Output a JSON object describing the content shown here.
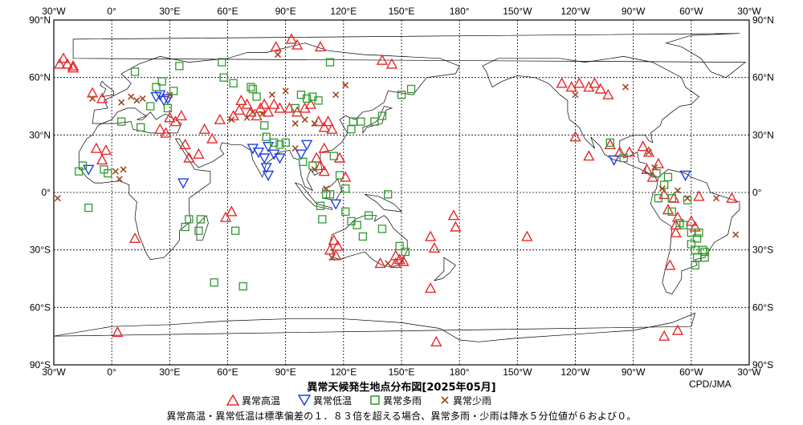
{
  "title": "異常天候発生地点分布図[2025年05月]",
  "credit": "CPD/JMA",
  "legend": {
    "hot": "異常高温",
    "cold": "異常低温",
    "wet": "異常多雨",
    "dry": "異常少雨"
  },
  "note": "異常高温・異常低温は標準偏差の１．８３倍を超える場合、異常多雨・少雨は降水５分位値が６および０。",
  "colors": {
    "hot": "#e8282c",
    "cold": "#1e3ee6",
    "wet": "#2f9a2f",
    "dry": "#a04a20"
  },
  "axes": {
    "lon_labels": [
      "30°W",
      "0°",
      "30°E",
      "60°E",
      "90°E",
      "120°E",
      "150°E",
      "180°",
      "150°W",
      "120°W",
      "90°W",
      "60°W",
      "30°W"
    ],
    "lat_labels": [
      "90°N",
      "60°N",
      "30°N",
      "0°",
      "30°S",
      "60°S",
      "90°S"
    ]
  },
  "chart_data": {
    "type": "scatter",
    "title": "異常天候発生地点分布図[2025年05月]",
    "x_axis": "longitude (east positive, 330°W..30°W centered on 150°E)",
    "y_axis": "latitude",
    "ylim": [
      -90,
      90
    ],
    "series": [
      {
        "name": "異常高温",
        "marker": "triangle-up",
        "points": [
          [
            -23,
            67
          ],
          [
            -25,
            70
          ],
          [
            -20,
            66
          ],
          [
            -10,
            52
          ],
          [
            -5,
            49
          ],
          [
            -8,
            23
          ],
          [
            -3,
            22
          ],
          [
            -5,
            17
          ],
          [
            3,
            -73
          ],
          [
            12,
            -24
          ],
          [
            25,
            33
          ],
          [
            30,
            39
          ],
          [
            33,
            37
          ],
          [
            36,
            40
          ],
          [
            28,
            31
          ],
          [
            38,
            25
          ],
          [
            45,
            20
          ],
          [
            40,
            18
          ],
          [
            48,
            33
          ],
          [
            52,
            28
          ],
          [
            56,
            38
          ],
          [
            62,
            -10
          ],
          [
            59,
            -13
          ],
          [
            63,
            40
          ],
          [
            66,
            43
          ],
          [
            67,
            48
          ],
          [
            70,
            46
          ],
          [
            72,
            42
          ],
          [
            75,
            40
          ],
          [
            77,
            44
          ],
          [
            79,
            46
          ],
          [
            81,
            42
          ],
          [
            84,
            46
          ],
          [
            87,
            44
          ],
          [
            92,
            44
          ],
          [
            96,
            42
          ],
          [
            100,
            44
          ],
          [
            103,
            46
          ],
          [
            107,
            37
          ],
          [
            110,
            34
          ],
          [
            112,
            37
          ],
          [
            114,
            33
          ],
          [
            110,
            23
          ],
          [
            106,
            18
          ],
          [
            108,
            14
          ],
          [
            110,
            11
          ],
          [
            118,
            18
          ],
          [
            121,
            8
          ],
          [
            115,
            -25
          ],
          [
            117,
            -28
          ],
          [
            113,
            -30
          ],
          [
            116,
            -33
          ],
          [
            147,
            -33
          ],
          [
            149,
            -35
          ],
          [
            151,
            -36
          ],
          [
            139,
            -37
          ],
          [
            147,
            -37
          ],
          [
            165,
            -23
          ],
          [
            167,
            -29
          ],
          [
            165,
            -50
          ],
          [
            177,
            -12
          ],
          [
            178,
            -18
          ],
          [
            168,
            -78
          ],
          [
            -145,
            -23
          ],
          [
            -127,
            57
          ],
          [
            -122,
            55
          ],
          [
            -118,
            57
          ],
          [
            -113,
            55
          ],
          [
            -110,
            57
          ],
          [
            -107,
            54
          ],
          [
            -103,
            51
          ],
          [
            -120,
            29
          ],
          [
            -113,
            19
          ],
          [
            -102,
            25
          ],
          [
            -97,
            21
          ],
          [
            -92,
            21
          ],
          [
            -85,
            24
          ],
          [
            -82,
            21
          ],
          [
            -83,
            12
          ],
          [
            -80,
            8
          ],
          [
            -77,
            15
          ],
          [
            -74,
            -1
          ],
          [
            -69,
            -3
          ],
          [
            -72,
            -9
          ],
          [
            -67,
            -13
          ],
          [
            -68,
            -17
          ],
          [
            -60,
            -15
          ],
          [
            -56,
            -2
          ],
          [
            -58,
            -18
          ],
          [
            -68,
            -21
          ],
          [
            -71,
            -38
          ],
          [
            -67,
            -72
          ],
          [
            -74,
            -75
          ],
          [
            -39,
            -3
          ],
          [
            -20,
            65
          ],
          [
            85,
            76
          ],
          [
            93,
            80
          ],
          [
            96,
            77
          ],
          [
            108,
            76
          ],
          [
            140,
            69
          ],
          [
            145,
            67
          ],
          [
            -27,
            67
          ]
        ]
      },
      {
        "name": "異常低温",
        "marker": "triangle-down",
        "points": [
          [
            -12,
            12
          ],
          [
            25,
            51
          ],
          [
            27,
            48
          ],
          [
            23,
            50
          ],
          [
            29,
            49
          ],
          [
            37,
            5
          ],
          [
            73,
            23
          ],
          [
            76,
            21
          ],
          [
            79,
            18
          ],
          [
            81,
            24
          ],
          [
            84,
            20
          ],
          [
            87,
            18
          ],
          [
            80,
            13
          ],
          [
            81,
            9
          ],
          [
            101,
            25
          ],
          [
            98,
            20
          ],
          [
            116,
            -6
          ],
          [
            -100,
            17
          ],
          [
            -63,
            9
          ]
        ]
      },
      {
        "name": "異常多雨",
        "marker": "square",
        "points": [
          [
            -15,
            14
          ],
          [
            -17,
            11
          ],
          [
            -12,
            -8
          ],
          [
            -4,
            12
          ],
          [
            -2,
            10
          ],
          [
            5,
            37
          ],
          [
            12,
            63
          ],
          [
            15,
            34
          ],
          [
            20,
            45
          ],
          [
            23,
            55
          ],
          [
            26,
            58
          ],
          [
            29,
            44
          ],
          [
            32,
            53
          ],
          [
            35,
            66
          ],
          [
            38,
            -18
          ],
          [
            40,
            -14
          ],
          [
            46,
            -14
          ],
          [
            45,
            -20
          ],
          [
            53,
            -47
          ],
          [
            57,
            68
          ],
          [
            58,
            60
          ],
          [
            63,
            57
          ],
          [
            64,
            -20
          ],
          [
            68,
            -49
          ],
          [
            72,
            55
          ],
          [
            73,
            54
          ],
          [
            75,
            50
          ],
          [
            79,
            35
          ],
          [
            80,
            29
          ],
          [
            84,
            26
          ],
          [
            87,
            25
          ],
          [
            90,
            26
          ],
          [
            95,
            44
          ],
          [
            98,
            51
          ],
          [
            101,
            49
          ],
          [
            104,
            50
          ],
          [
            107,
            48
          ],
          [
            113,
            68
          ],
          [
            115,
            19
          ],
          [
            118,
            9
          ],
          [
            121,
            2
          ],
          [
            121,
            -10
          ],
          [
            124,
            -15
          ],
          [
            109,
            -14
          ],
          [
            113,
            -1
          ],
          [
            111,
            -1
          ],
          [
            108,
            -7
          ],
          [
            104,
            14
          ],
          [
            99,
            16
          ],
          [
            124,
            33
          ],
          [
            125,
            37
          ],
          [
            129,
            37
          ],
          [
            136,
            37
          ],
          [
            140,
            40
          ],
          [
            143,
            -1
          ],
          [
            133,
            -12
          ],
          [
            127,
            -17
          ],
          [
            130,
            -23
          ],
          [
            140,
            -19
          ],
          [
            149,
            -28
          ],
          [
            152,
            -31
          ],
          [
            155,
            54
          ],
          [
            150,
            51
          ],
          [
            -102,
            26
          ],
          [
            -95,
            18
          ],
          [
            -78,
            10
          ],
          [
            -72,
            8
          ],
          [
            -74,
            4
          ],
          [
            -70,
            -3
          ],
          [
            -77,
            -3
          ],
          [
            -62,
            -4
          ],
          [
            -66,
            -16
          ],
          [
            -60,
            -21
          ],
          [
            -56,
            -21
          ],
          [
            -57,
            -24
          ],
          [
            -58,
            -30
          ],
          [
            -57,
            -34
          ],
          [
            -58,
            -38
          ],
          [
            -54,
            -30
          ],
          [
            -53,
            -31
          ],
          [
            -53,
            -34
          ],
          [
            -60,
            -27
          ],
          [
            -64,
            -17
          ],
          [
            -70,
            -10
          ]
        ]
      },
      {
        "name": "異常少雨",
        "marker": "x",
        "points": [
          [
            2,
            11
          ],
          [
            4,
            7
          ],
          [
            6,
            12
          ],
          [
            -10,
            49
          ],
          [
            5,
            47
          ],
          [
            10,
            50
          ],
          [
            13,
            48
          ],
          [
            16,
            49
          ],
          [
            30,
            51
          ],
          [
            62,
            38
          ],
          [
            70,
            39
          ],
          [
            73,
            42
          ],
          [
            78,
            41
          ],
          [
            83,
            51
          ],
          [
            90,
            53
          ],
          [
            86,
            72
          ],
          [
            100,
            38
          ],
          [
            105,
            36
          ],
          [
            95,
            36
          ],
          [
            95,
            23
          ],
          [
            105,
            12
          ],
          [
            111,
            2
          ],
          [
            114,
            -34
          ],
          [
            121,
            56
          ],
          [
            116,
            51
          ],
          [
            143,
            -37
          ],
          [
            -120,
            51
          ],
          [
            -94,
            55
          ],
          [
            -82,
            21
          ],
          [
            -79,
            13
          ],
          [
            -75,
            2
          ],
          [
            -62,
            -3
          ],
          [
            -47,
            -3
          ],
          [
            -28,
            -3
          ],
          [
            -37,
            -22
          ],
          [
            -67,
            1
          ]
        ]
      }
    ]
  }
}
